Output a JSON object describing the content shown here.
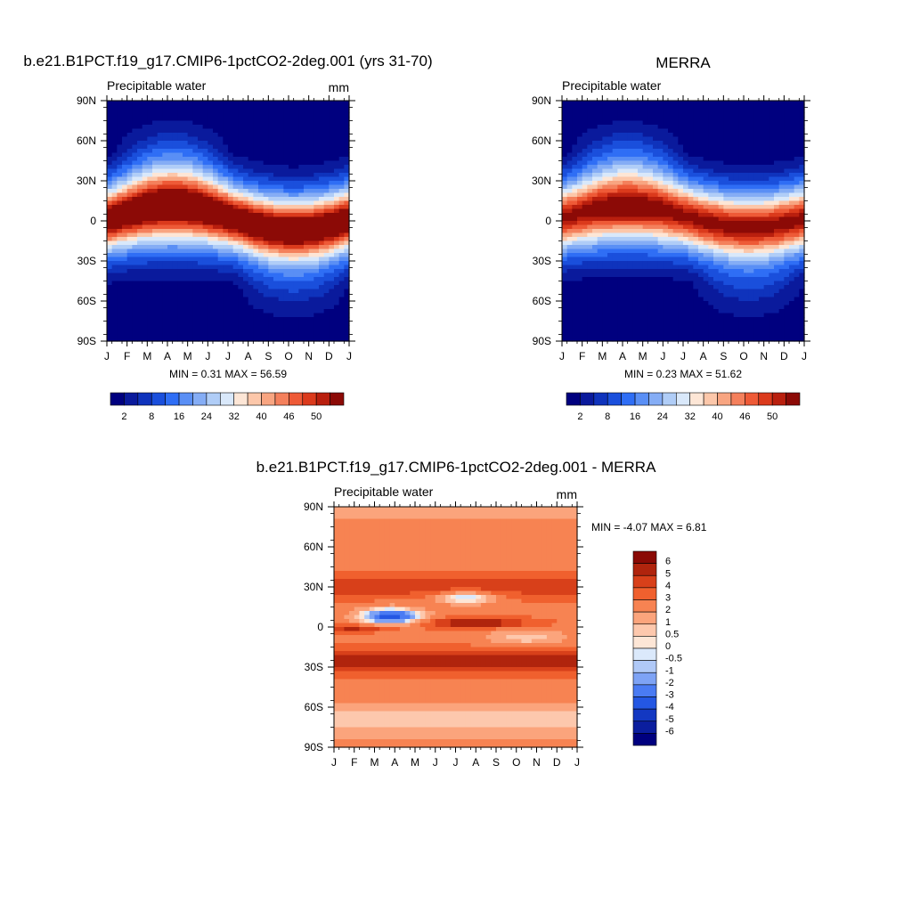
{
  "palette": {
    "blue_red": [
      "#00007f",
      "#0a1a9c",
      "#0f33bc",
      "#1a4fdc",
      "#2f6ef5",
      "#5a8ff5",
      "#85adf5",
      "#b0cdf7",
      "#d9e8fa",
      "#fde6d6",
      "#fcc7aa",
      "#f8a581",
      "#f4805c",
      "#ee5a37",
      "#db3a1c",
      "#b91f0e",
      "#8c0a06"
    ],
    "diff": [
      "#00007f",
      "#0b1e9e",
      "#1338c2",
      "#2457e3",
      "#4a7bf3",
      "#7ea3f5",
      "#b0c9f7",
      "#dbe9fb",
      "#fde6d6",
      "#fdc8ad",
      "#fba47c",
      "#f78352",
      "#f0602e",
      "#d8401a",
      "#b0240d",
      "#8a0a05"
    ]
  },
  "chart_data": [
    {
      "type": "heatmap",
      "title": "b.e21.B1PCT.f19_g17.CMIP6-1pctCO2-2deg.001 (yrs 31-70)",
      "subtitle_left": "Precipitable water",
      "subtitle_right": "mm",
      "x_ticks": [
        "J",
        "F",
        "M",
        "A",
        "M",
        "J",
        "J",
        "A",
        "S",
        "O",
        "N",
        "D",
        "J"
      ],
      "y_ticks": [
        "90N",
        "60N",
        "30N",
        "0",
        "30S",
        "60S",
        "90S"
      ],
      "y_values": [
        90,
        60,
        30,
        0,
        -30,
        -60,
        -90
      ],
      "stats": "MIN =   0.31 MAX =  56.59",
      "min": 0.31,
      "max": 56.59,
      "colorbar_labels": [
        "2",
        "8",
        "16",
        "24",
        "32",
        "40",
        "46",
        "50"
      ],
      "field": {
        "kind": "model",
        "peak": 56,
        "itcz_amp": 9,
        "itcz_offset": 2
      }
    },
    {
      "type": "heatmap",
      "title": "MERRA",
      "subtitle_left": "Precipitable water",
      "subtitle_right": "",
      "x_ticks": [
        "J",
        "F",
        "M",
        "A",
        "M",
        "J",
        "J",
        "A",
        "S",
        "O",
        "N",
        "D",
        "J"
      ],
      "y_ticks": [
        "90N",
        "60N",
        "30N",
        "0",
        "30S",
        "60S",
        "90S"
      ],
      "y_values": [
        90,
        60,
        30,
        0,
        -30,
        -60,
        -90
      ],
      "stats": "MIN =   0.23 MAX =  51.62",
      "min": 0.23,
      "max": 51.62,
      "colorbar_labels": [
        "2",
        "8",
        "16",
        "24",
        "32",
        "40",
        "46",
        "50"
      ],
      "field": {
        "kind": "obs",
        "peak": 51,
        "itcz_amp": 8,
        "itcz_offset": 3
      }
    },
    {
      "type": "heatmap",
      "title": "b.e21.B1PCT.f19_g17.CMIP6-1pctCO2-2deg.001 - MERRA",
      "subtitle_left": "Precipitable water",
      "subtitle_right": "mm",
      "x_ticks": [
        "J",
        "F",
        "M",
        "A",
        "M",
        "J",
        "J",
        "A",
        "S",
        "O",
        "N",
        "D",
        "J"
      ],
      "y_ticks": [
        "90N",
        "60N",
        "30N",
        "0",
        "30S",
        "60S",
        "90S"
      ],
      "y_values": [
        90,
        60,
        30,
        0,
        -30,
        -60,
        -90
      ],
      "stats": "MIN =  -4.07 MAX =   6.81",
      "min": -4.07,
      "max": 6.81,
      "colorbar_labels": [
        "6",
        "5",
        "4",
        "3",
        "2",
        "1",
        "0.5",
        "0",
        "-0.5",
        "-1",
        "-2",
        "-3",
        "-4",
        "-5",
        "-6"
      ],
      "colorbar_levels": [
        -6,
        -5,
        -4,
        -3,
        -2,
        -1,
        -0.5,
        0,
        0.5,
        1,
        2,
        3,
        4,
        5,
        6
      ],
      "field": {
        "kind": "diff"
      }
    }
  ]
}
